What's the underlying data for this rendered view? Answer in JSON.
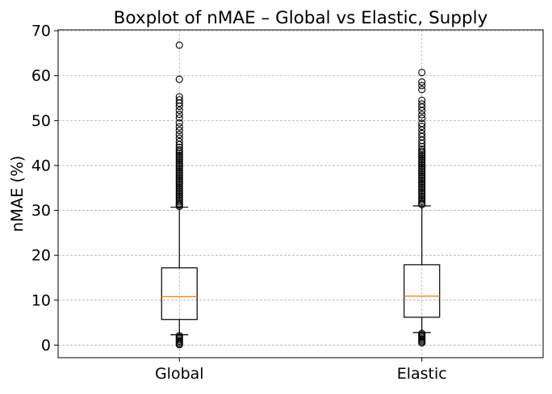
{
  "chart_data": {
    "type": "boxplot",
    "title": "Boxplot of nMAE – Global vs Elastic, Supply",
    "xlabel": "",
    "ylabel": "nMAE (%)",
    "ylim": [
      -2.8,
      70.2
    ],
    "yticks": [
      0,
      10,
      20,
      30,
      40,
      50,
      60,
      70
    ],
    "grid": true,
    "categories": [
      "Global",
      "Elastic"
    ],
    "series": [
      {
        "category": "Global",
        "whisker_low": 2.3,
        "q1": 5.7,
        "median": 10.8,
        "q3": 17.2,
        "whisker_high": 30.7,
        "outliers_high": [
          30.9,
          31.2,
          31.5,
          31.9,
          32.3,
          32.7,
          33.1,
          33.5,
          33.9,
          34.3,
          34.7,
          35.1,
          35.5,
          35.9,
          36.3,
          36.7,
          37.1,
          37.5,
          37.9,
          38.3,
          38.7,
          39.1,
          39.5,
          39.9,
          40.3,
          40.7,
          41.1,
          41.5,
          41.9,
          42.3,
          42.7,
          43.1,
          43.5,
          44.0,
          44.6,
          45.3,
          46.1,
          46.9,
          47.8,
          48.6,
          49.5,
          50.6,
          51.4,
          52.3,
          53.2,
          53.9,
          54.6,
          55.3,
          59.2,
          66.8
        ],
        "outliers_low": [
          2.1,
          1.8,
          1.5,
          1.2,
          0.9,
          0.6,
          0.3,
          0.1
        ]
      },
      {
        "category": "Elastic",
        "whisker_low": 2.8,
        "q1": 6.2,
        "median": 10.9,
        "q3": 17.9,
        "whisker_high": 31.0,
        "outliers_high": [
          31.3,
          31.6,
          32.0,
          32.4,
          32.8,
          33.2,
          33.6,
          34.0,
          34.4,
          34.8,
          35.2,
          35.6,
          36.0,
          36.4,
          36.8,
          37.2,
          37.6,
          38.0,
          38.4,
          38.8,
          39.2,
          39.6,
          40.0,
          40.4,
          40.8,
          41.2,
          41.6,
          42.0,
          42.4,
          42.8,
          43.2,
          43.6,
          44.2,
          44.9,
          45.6,
          46.4,
          47.1,
          47.9,
          48.7,
          49.4,
          50.5,
          51.3,
          52.2,
          53.0,
          53.7,
          54.5,
          56.9,
          57.8,
          58.6,
          60.7
        ],
        "outliers_low": [
          2.6,
          2.3,
          2.0,
          1.7,
          1.4,
          1.1,
          0.8,
          0.5
        ]
      }
    ],
    "colors": {
      "box": "#000000",
      "median": "#ff7f0e",
      "grid": "#b0b0b0",
      "outlier_edge": "#000000"
    }
  }
}
